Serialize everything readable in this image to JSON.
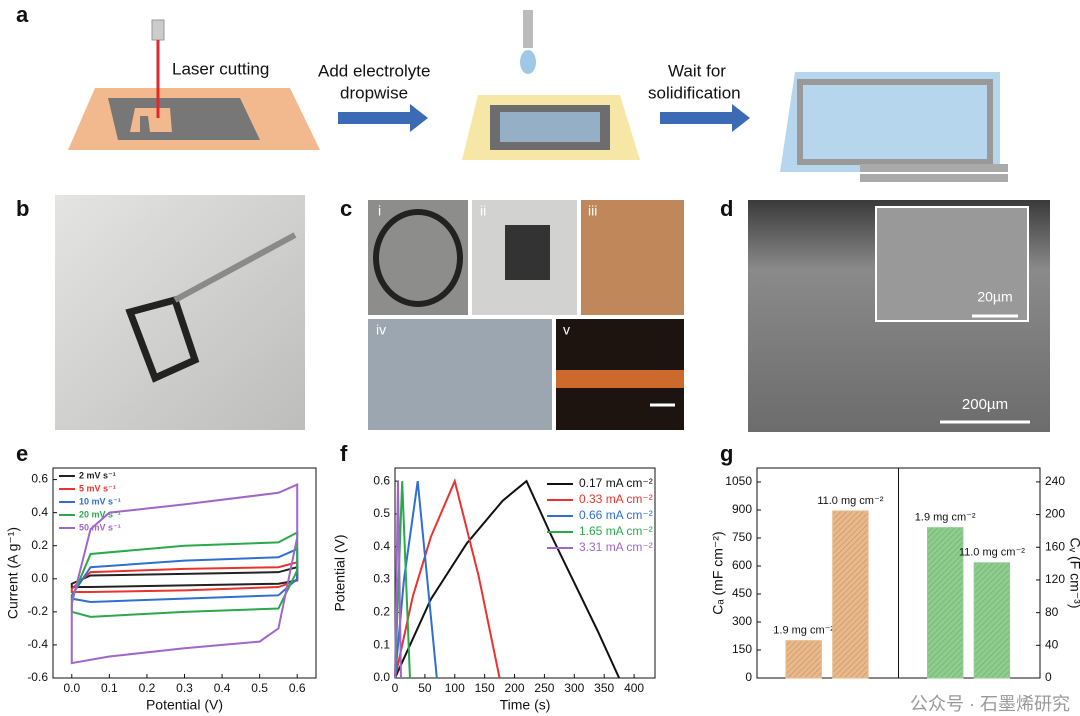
{
  "panels": {
    "a": {
      "label": "a",
      "steps": [
        [
          "Laser cutting"
        ],
        [
          "Add electrolyte",
          "dropwise"
        ],
        [
          "Wait for",
          "solidification"
        ]
      ]
    },
    "b": {
      "label": "b"
    },
    "c": {
      "label": "c",
      "sublabels": [
        "i",
        "ii",
        "iii",
        "iv",
        "v"
      ]
    },
    "d": {
      "label": "d",
      "scale_main": "200µm",
      "scale_inset": "20µm"
    }
  },
  "watermark": "公众号 · 石墨烯研究",
  "chart_data": [
    {
      "type": "line",
      "panel": "e",
      "xlabel": "Potential (V)",
      "ylabel": "Current (A g⁻¹)",
      "xlim": [
        -0.05,
        0.65
      ],
      "ylim": [
        -0.6,
        0.67
      ],
      "xticks": [
        {
          "value": 0,
          "label": "0.0"
        },
        0.1,
        0.2,
        0.3,
        0.4,
        0.5,
        0.6
      ],
      "yticks": [
        -0.6,
        -0.4,
        -0.2,
        {
          "value": 0,
          "label": "0.0"
        },
        0.2,
        0.4,
        0.6
      ],
      "legend": "upper left",
      "closed": true,
      "series": [
        {
          "name": "2 mV s⁻¹",
          "color": "#222222",
          "x": [
            0,
            0.05,
            0.3,
            0.55,
            0.6,
            0.6,
            0.55,
            0.3,
            0.05,
            0
          ],
          "values": [
            -0.03,
            0.02,
            0.03,
            0.04,
            0.07,
            -0.01,
            -0.03,
            -0.04,
            -0.05,
            -0.05
          ]
        },
        {
          "name": "5 mV s⁻¹",
          "color": "#e8332f",
          "x": [
            0,
            0.05,
            0.3,
            0.55,
            0.6,
            0.6,
            0.55,
            0.3,
            0.05,
            0
          ],
          "values": [
            -0.06,
            0.04,
            0.06,
            0.07,
            0.1,
            -0.01,
            -0.05,
            -0.07,
            -0.08,
            -0.08
          ]
        },
        {
          "name": "10 mV s⁻¹",
          "color": "#2f6fd0",
          "x": [
            0,
            0.05,
            0.3,
            0.55,
            0.6,
            0.6,
            0.55,
            0.3,
            0.05,
            0
          ],
          "values": [
            -0.1,
            0.07,
            0.11,
            0.13,
            0.18,
            0.0,
            -0.1,
            -0.12,
            -0.14,
            -0.12
          ]
        },
        {
          "name": "20 mV s⁻¹",
          "color": "#2aa84a",
          "x": [
            0,
            0.05,
            0.3,
            0.55,
            0.6,
            0.6,
            0.55,
            0.3,
            0.05,
            0
          ],
          "values": [
            -0.12,
            0.15,
            0.2,
            0.22,
            0.28,
            0.05,
            -0.18,
            -0.2,
            -0.23,
            -0.2
          ]
        },
        {
          "name": "50 mV s⁻¹",
          "color": "#a066c8",
          "x": [
            0,
            0.05,
            0.1,
            0.3,
            0.55,
            0.6,
            0.6,
            0.55,
            0.5,
            0.3,
            0.1,
            0
          ],
          "values": [
            -0.15,
            0.3,
            0.4,
            0.45,
            0.52,
            0.57,
            0.25,
            -0.3,
            -0.38,
            -0.42,
            -0.47,
            -0.51
          ]
        }
      ]
    },
    {
      "type": "line",
      "panel": "f",
      "xlabel": "Time (s)",
      "ylabel": "Potential (V)",
      "xlim": [
        0,
        435
      ],
      "ylim": [
        0,
        0.64
      ],
      "xticks": [
        0,
        50,
        100,
        150,
        200,
        250,
        300,
        350,
        400
      ],
      "yticks": [
        {
          "value": 0,
          "label": "0.0"
        },
        0.1,
        0.2,
        0.3,
        0.4,
        0.5,
        0.6
      ],
      "legend": "upper right",
      "closed": false,
      "series": [
        {
          "name": "0.17 mA cm⁻²",
          "color": "#111111",
          "x": [
            0,
            60,
            120,
            180,
            220,
            260,
            300,
            340,
            375
          ],
          "values": [
            0,
            0.24,
            0.41,
            0.54,
            0.6,
            0.44,
            0.29,
            0.14,
            0
          ]
        },
        {
          "name": "0.33 mA cm⁻²",
          "color": "#e8332f",
          "x": [
            0,
            30,
            60,
            100,
            140,
            175
          ],
          "values": [
            0,
            0.25,
            0.43,
            0.6,
            0.31,
            0
          ]
        },
        {
          "name": "0.66 mA cm⁻²",
          "color": "#2f6fd0",
          "x": [
            0,
            15,
            38,
            70
          ],
          "values": [
            0,
            0.3,
            0.6,
            0
          ]
        },
        {
          "name": "1.65 mA cm⁻²",
          "color": "#2aa84a",
          "x": [
            0,
            12,
            25
          ],
          "values": [
            0,
            0.6,
            0
          ]
        },
        {
          "name": "3.31 mA cm⁻²",
          "color": "#a066c8",
          "x": [
            0,
            5,
            10
          ],
          "values": [
            0,
            0.6,
            0
          ]
        }
      ]
    },
    {
      "type": "bar",
      "panel": "g",
      "ylabel": "Cₐ (mF cm⁻²)",
      "y2label": "Cᵥ (F cm⁻³)",
      "ylim": [
        0,
        1125
      ],
      "yticks": [
        0,
        150,
        300,
        450,
        600,
        750,
        900,
        1050
      ],
      "y2lim": [
        0,
        257
      ],
      "y2ticks": [
        0,
        40,
        80,
        120,
        160,
        200,
        240
      ],
      "categories": [
        "1.9 mg cm⁻²",
        "11.0 mg cm⁻²"
      ],
      "series": [
        {
          "color": "#e7b98c",
          "values": [
            200,
            895
          ]
        },
        {
          "color": "#8fcc8f",
          "axis": "y2",
          "values": [
            184,
            141
          ]
        }
      ]
    }
  ]
}
